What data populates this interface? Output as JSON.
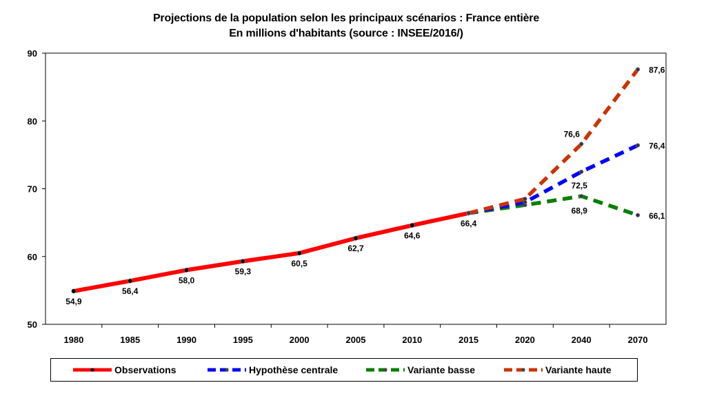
{
  "title": "Projections de la population selon les principaux scénarios : France entière",
  "subtitle": "En millions d'habitants (source : INSEE/2016/)",
  "chart_data": {
    "type": "line",
    "title": "Projections de la population selon les principaux scénarios : France entière",
    "subtitle": "En millions d'habitants (source : INSEE/2016/)",
    "categories": [
      "1980",
      "1985",
      "1990",
      "1995",
      "2000",
      "2005",
      "2010",
      "2015",
      "2020",
      "2040",
      "2070"
    ],
    "ylim": [
      50,
      90
    ],
    "yticks": [
      "50",
      "60",
      "70",
      "80",
      "90"
    ],
    "grid": false,
    "legend": "bottom",
    "series": [
      {
        "name": "Observations",
        "color": "#ff0000",
        "style": "solid",
        "values": [
          54.9,
          56.4,
          58.0,
          59.3,
          60.5,
          62.7,
          64.6,
          66.4,
          null,
          null,
          null
        ],
        "labels": [
          "54,9",
          "56,4",
          "58,0",
          "59,3",
          "60,5",
          "62,7",
          "64,6",
          "66,4",
          "",
          "",
          ""
        ]
      },
      {
        "name": "Hypothèse centrale",
        "color": "#0000ff",
        "style": "dashed",
        "values": [
          null,
          null,
          null,
          null,
          null,
          null,
          null,
          66.4,
          68.0,
          72.5,
          76.4
        ],
        "labels": [
          "",
          "",
          "",
          "",
          "",
          "",
          "",
          "",
          "",
          "72,5",
          "76,4"
        ]
      },
      {
        "name": "Variante basse",
        "color": "#008000",
        "style": "dashed",
        "values": [
          null,
          null,
          null,
          null,
          null,
          null,
          null,
          66.4,
          67.6,
          68.9,
          66.1
        ],
        "labels": [
          "",
          "",
          "",
          "",
          "",
          "",
          "",
          "",
          "",
          "68,9",
          "66,1"
        ]
      },
      {
        "name": "Variante haute",
        "color": "#cc3300",
        "style": "dashed",
        "values": [
          null,
          null,
          null,
          null,
          null,
          null,
          null,
          66.4,
          68.5,
          76.6,
          87.6
        ],
        "labels": [
          "",
          "",
          "",
          "",
          "",
          "",
          "",
          "",
          "",
          "76,6",
          "87,6"
        ]
      }
    ]
  }
}
